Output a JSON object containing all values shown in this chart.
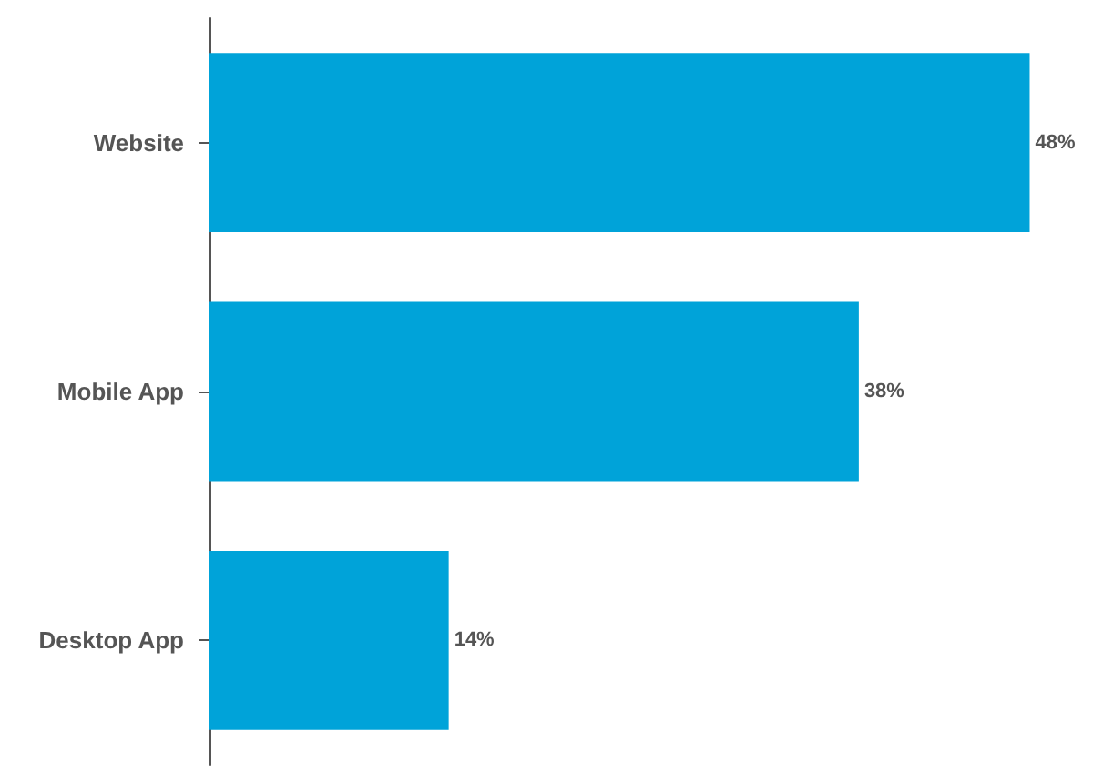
{
  "chart_data": {
    "type": "bar",
    "orientation": "horizontal",
    "categories": [
      "Website",
      "Mobile App",
      "Desktop App"
    ],
    "values": [
      48,
      38,
      14
    ],
    "color": "#00a3d9",
    "value_labels": [
      "48%",
      "38%",
      "14%"
    ]
  }
}
